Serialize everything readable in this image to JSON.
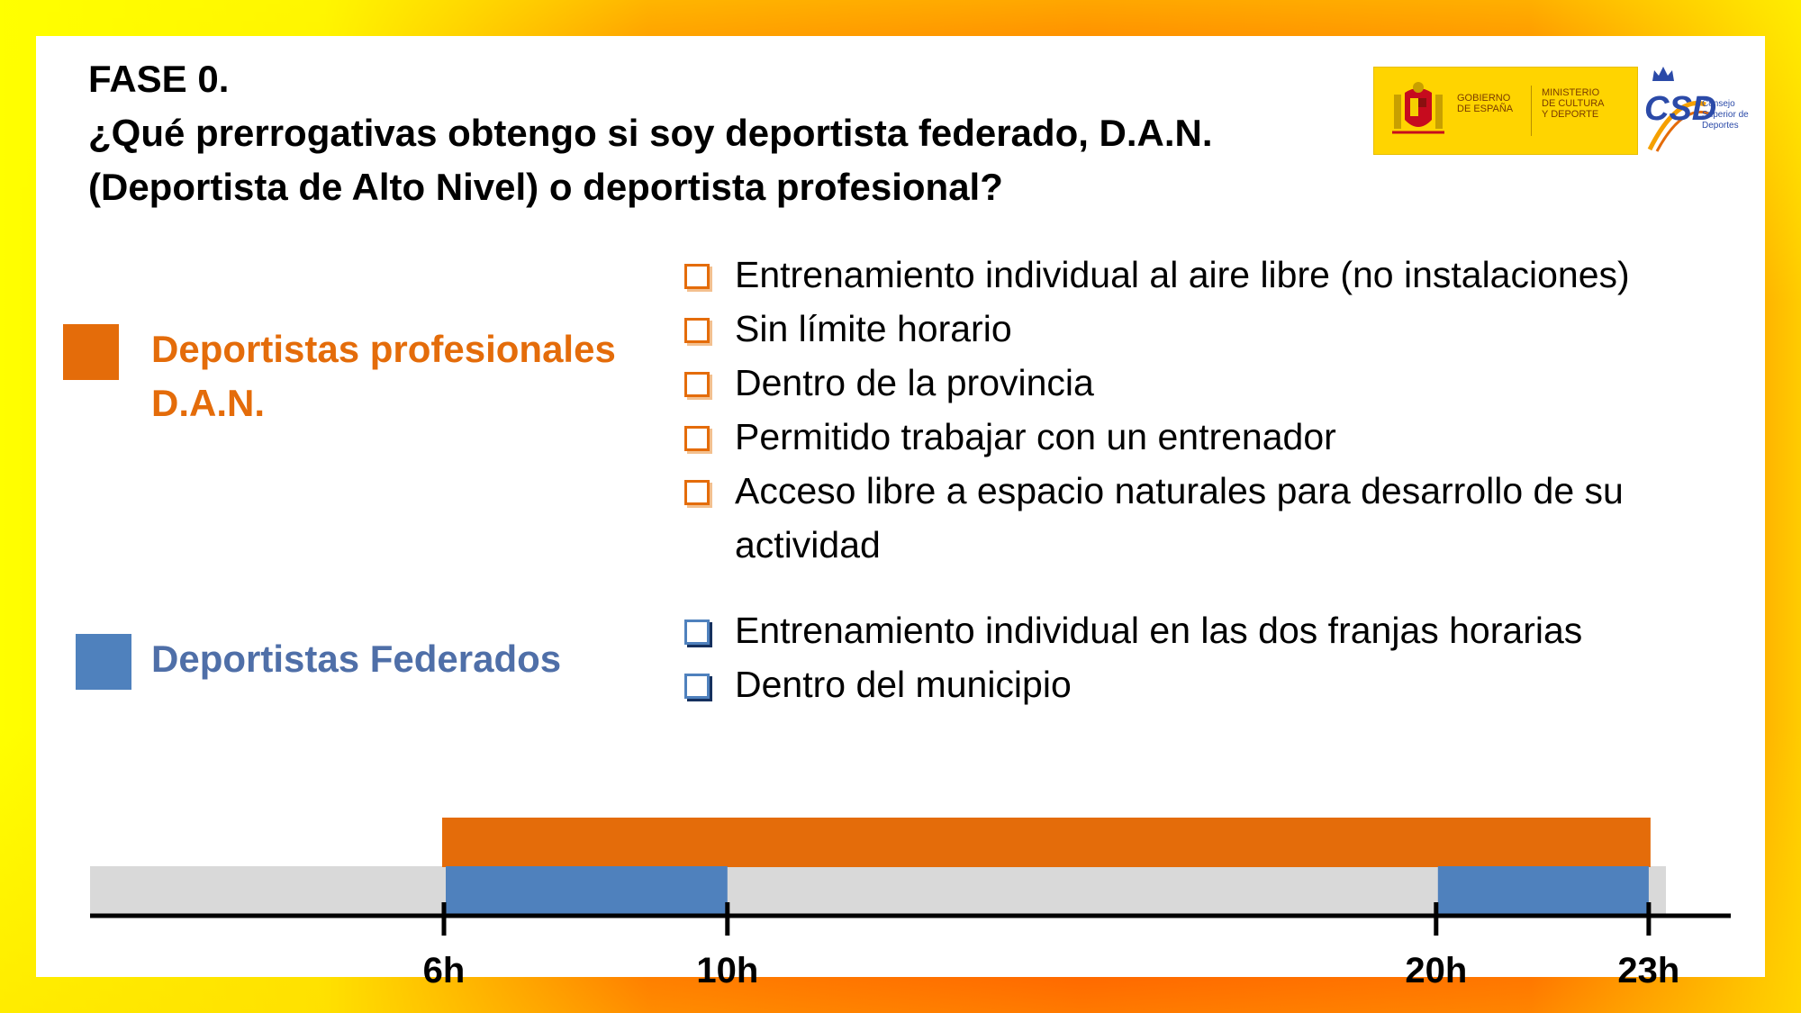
{
  "title": {
    "line1": "FASE 0.",
    "line2": "¿Qué prerrogativas obtengo si soy deportista federado, D.A.N.",
    "line3": "(Deportista de Alto Nivel)  o deportista profesional?"
  },
  "logos": {
    "gov_line1": "GOBIERNO",
    "gov_line2": "DE ESPAÑA",
    "min_line1": "MINISTERIO",
    "min_line2": "DE CULTURA",
    "min_line3": "Y DEPORTE",
    "csd_word": "CSD",
    "csd_sub1": "Consejo",
    "csd_sub2": "Superior de",
    "csd_sub3": "Deportes"
  },
  "colors": {
    "orange": "#e46c0a",
    "blue": "#4f81bd",
    "grey": "#d9d9d9"
  },
  "professional": {
    "line1": "Deportistas profesionales",
    "line2": "D.A.N.",
    "items": [
      "Entrenamiento individual al aire libre (no instalaciones)",
      "Sin límite horario",
      "Dentro de la provincia",
      "Permitido trabajar con un entrenador",
      "Acceso libre a espacio naturales para desarrollo de su",
      "actividad"
    ]
  },
  "federated": {
    "label": "Deportistas Federados",
    "items": [
      "Entrenamiento individual en las dos franjas horarias",
      "Dentro del municipio"
    ]
  },
  "timeline": {
    "ticks": [
      {
        "hour": 6,
        "label": "6h"
      },
      {
        "hour": 10,
        "label": "10h"
      },
      {
        "hour": 20,
        "label": "20h"
      },
      {
        "hour": 23,
        "label": "23h"
      }
    ],
    "professional_range": [
      6,
      23
    ],
    "federated_ranges": [
      [
        6,
        10
      ],
      [
        20,
        23
      ]
    ]
  }
}
